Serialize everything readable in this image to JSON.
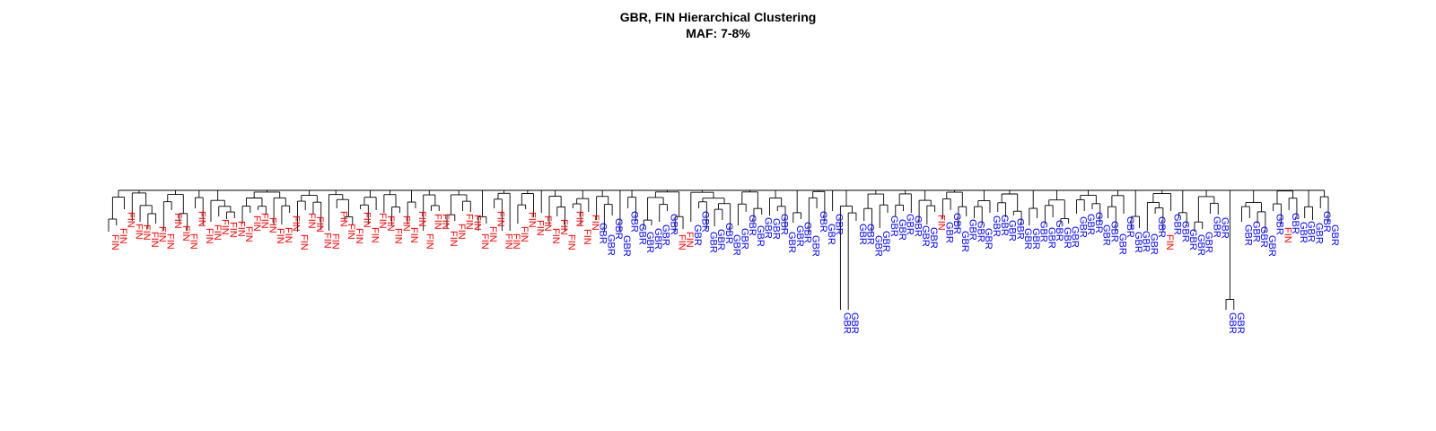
{
  "figure": {
    "title": "GBR, FIN Hierarchical Clustering",
    "subtitle": "MAF: 7-8%"
  },
  "colors": {
    "FIN": "#ff0000",
    "GBR": "#0000ff",
    "branch": "#000000",
    "background": "#ffffff"
  },
  "chart_data": {
    "type": "dendrogram",
    "title": "GBR, FIN Hierarchical Clustering",
    "subtitle": "MAF: 7-8%",
    "leaf_label_values": [
      "FIN",
      "GBR"
    ],
    "leaf_groups": [
      {
        "label": "FIN",
        "count": 62
      },
      {
        "label": "GBR",
        "count": 10
      },
      {
        "label": "FIN",
        "count": 2
      },
      {
        "label": "GBR",
        "count": 15
      },
      {
        "label": "GBR",
        "count": 2
      },
      {
        "label": "GBR",
        "count": 14
      },
      {
        "label": "FIN",
        "count": 1
      },
      {
        "label": "GBR",
        "count": 28
      },
      {
        "label": "FIN",
        "count": 1
      },
      {
        "label": "GBR",
        "count": 8
      },
      {
        "label": "GBR",
        "count": 2
      },
      {
        "label": "GBR",
        "count": 4
      },
      {
        "label": "FIN",
        "count": 1
      },
      {
        "label": "GBR",
        "count": 6
      }
    ],
    "notes": "Leaves colored by population label (FIN red, GBR blue); two outlying GBR pairs join at greater height."
  }
}
